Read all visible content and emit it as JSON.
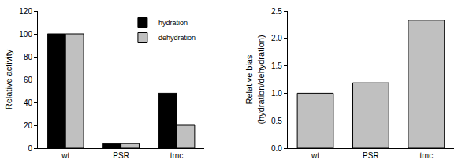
{
  "chart_data": [
    {
      "type": "bar",
      "ylabel": [
        "Relative activity"
      ],
      "categories": [
        "wt",
        "PSR",
        "trnc"
      ],
      "series": [
        {
          "name": "hydration",
          "color": "#000000",
          "values": [
            100,
            4,
            48
          ]
        },
        {
          "name": "dehydration",
          "color": "#c0c0c0",
          "values": [
            100,
            4,
            20
          ]
        }
      ],
      "ylim": [
        0,
        120
      ],
      "yticks": [
        0,
        20,
        40,
        60,
        80,
        100,
        120
      ],
      "grid": false,
      "legend": "upper right"
    },
    {
      "type": "bar",
      "ylabel": [
        "Relative bias",
        "(hydration/dehydration)"
      ],
      "categories": [
        "wt",
        "PSR",
        "trnc"
      ],
      "values": [
        1.0,
        1.19,
        2.33
      ],
      "color": "#c0c0c0",
      "ylim": [
        0,
        2.5
      ],
      "yticks": [
        {
          "value": 0,
          "label": "0.0"
        },
        {
          "value": 0.5,
          "label": "0.5"
        },
        {
          "value": 1.0,
          "label": "1.0"
        },
        {
          "value": 1.5,
          "label": "1.5"
        },
        {
          "value": 2.0,
          "label": "2.0"
        },
        {
          "value": 2.5,
          "label": "2.5"
        }
      ],
      "grid": false
    }
  ]
}
